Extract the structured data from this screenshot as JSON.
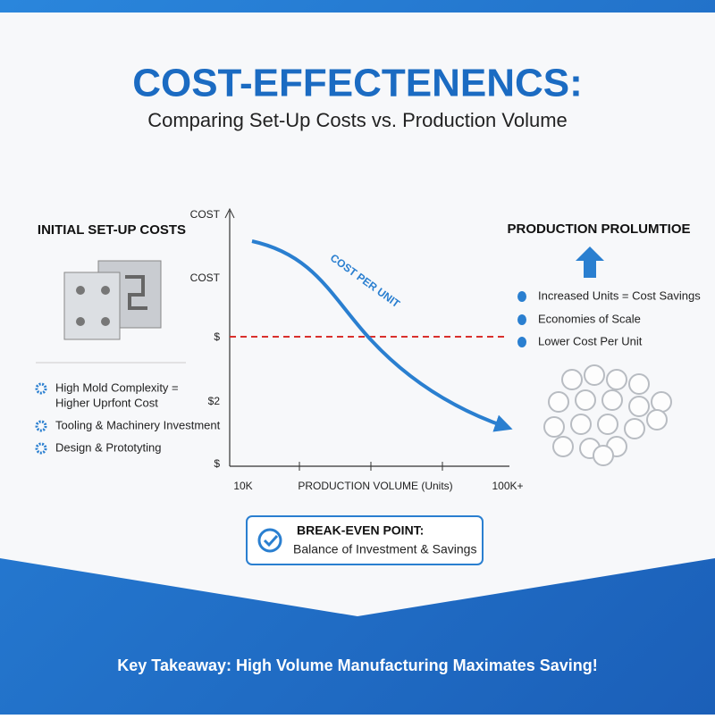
{
  "header": {
    "title": "COST-EFFECTENENCS:",
    "subtitle": "Comparing Set-Up Costs vs. Production Volume"
  },
  "left_panel": {
    "title": "INITIAL SET-UP COSTS",
    "items": [
      [
        "High Mold Complexity =",
        "Higher Uprfont Cost"
      ],
      [
        "Tooling & Machinery Investment"
      ],
      [
        "Design & Prototyting"
      ]
    ]
  },
  "chart": {
    "y_labels": [
      "COST",
      "COST",
      "$",
      "$2",
      "$"
    ],
    "x_labels": [
      "10K",
      "PRODUCTION VOLUME (Units)",
      "100K+"
    ],
    "curve_label": "COST PER UNIT"
  },
  "right_panel": {
    "title": "PRODUCTION PROLUMTIOE",
    "items": [
      "Increased Units = Cost Savings",
      "Economies of Scale",
      "Lower Cost Per Unit"
    ]
  },
  "callout": {
    "title": "BREAK-EVEN POINT:",
    "text": "Balance of Investment & Savings"
  },
  "footer": {
    "text": "Key Takeaway: High Volume Manufacturing Maximates Saving!"
  }
}
